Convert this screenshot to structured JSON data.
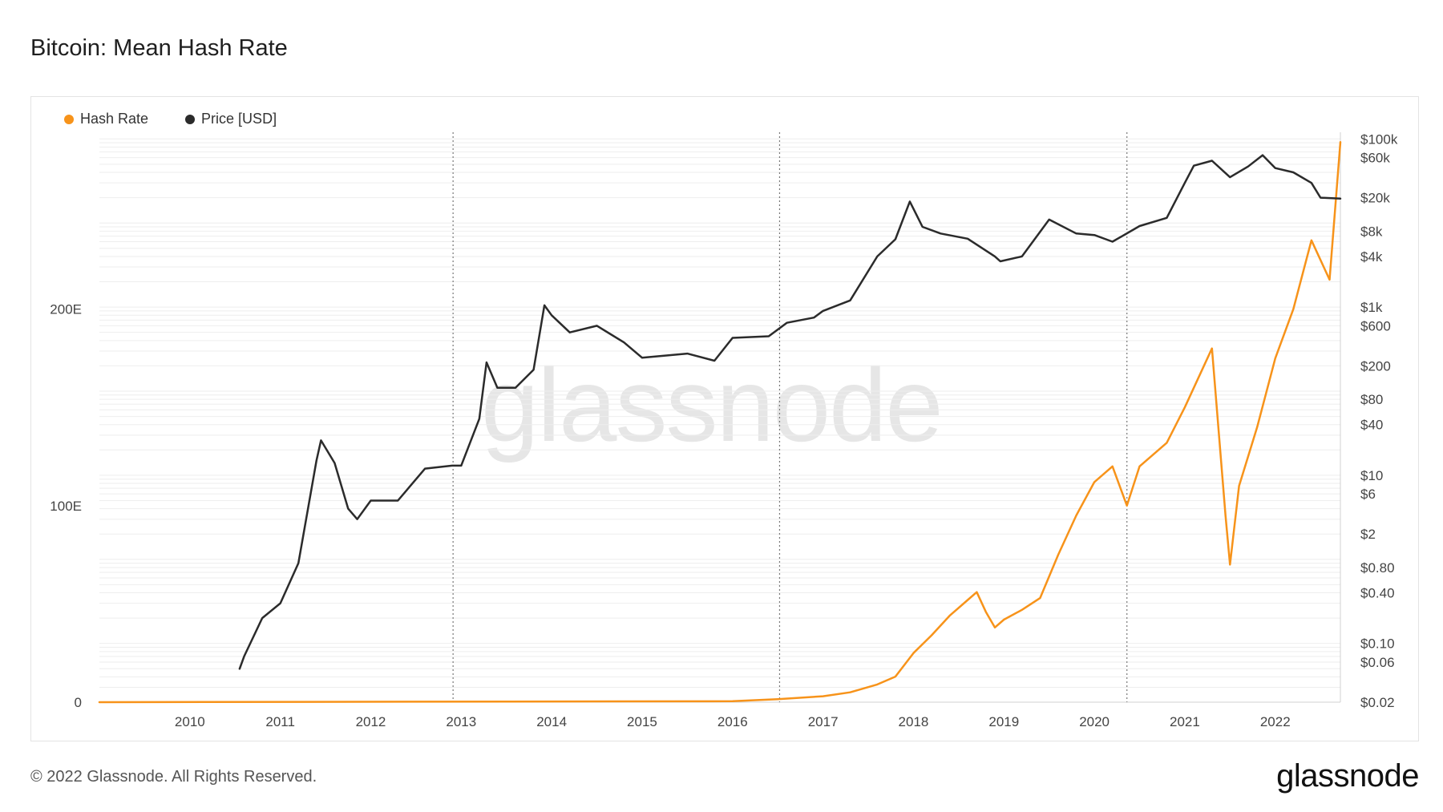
{
  "header": {
    "title": "Bitcoin: Mean Hash Rate"
  },
  "legend": [
    {
      "label": "Hash Rate",
      "color": "#f7931a"
    },
    {
      "label": "Price [USD]",
      "color": "#2b2b2b"
    }
  ],
  "watermark": "glassnode",
  "footer": {
    "copyright": "© 2022 Glassnode. All Rights Reserved.",
    "brand": "glassnode"
  },
  "chart_data": {
    "type": "line",
    "title": "Bitcoin: Mean Hash Rate",
    "x_range": [
      2009.0,
      2022.72
    ],
    "x_ticks": [
      "2010",
      "2011",
      "2012",
      "2013",
      "2014",
      "2015",
      "2016",
      "2017",
      "2018",
      "2019",
      "2020",
      "2021",
      "2022"
    ],
    "halvings": [
      2012.91,
      2016.52,
      2020.36
    ],
    "left_axis": {
      "ticks": [
        "0",
        "100E",
        "200E"
      ],
      "tick_values": [
        0,
        100,
        200
      ],
      "range": [
        0,
        290
      ],
      "unit": "EH/s"
    },
    "right_axis": {
      "scale": "log",
      "range": [
        0.02,
        120000
      ],
      "ticks": [
        "$0.02",
        "$0.06",
        "$0.10",
        "$0.40",
        "$0.80",
        "$2",
        "$6",
        "$10",
        "$40",
        "$80",
        "$200",
        "$600",
        "$1k",
        "$4k",
        "$8k",
        "$20k",
        "$60k",
        "$100k"
      ],
      "tick_values": [
        0.02,
        0.06,
        0.1,
        0.4,
        0.8,
        2,
        6,
        10,
        40,
        80,
        200,
        600,
        1000,
        4000,
        8000,
        20000,
        60000,
        100000
      ]
    },
    "series": [
      {
        "name": "Hash Rate",
        "axis": "left",
        "color": "#f7931a",
        "x": [
          2009.0,
          2016.0,
          2016.5,
          2017.0,
          2017.3,
          2017.6,
          2017.8,
          2018.0,
          2018.2,
          2018.4,
          2018.6,
          2018.7,
          2018.8,
          2018.9,
          2019.0,
          2019.2,
          2019.4,
          2019.6,
          2019.8,
          2020.0,
          2020.2,
          2020.36,
          2020.5,
          2020.8,
          2021.0,
          2021.2,
          2021.3,
          2021.45,
          2021.5,
          2021.6,
          2021.8,
          2022.0,
          2022.2,
          2022.4,
          2022.6,
          2022.72
        ],
        "y": [
          0,
          0.5,
          1.5,
          3,
          5,
          9,
          13,
          25,
          34,
          44,
          52,
          56,
          46,
          38,
          42,
          47,
          53,
          75,
          95,
          112,
          120,
          100,
          120,
          132,
          150,
          170,
          180,
          95,
          70,
          110,
          140,
          175,
          200,
          235,
          215,
          285
        ]
      },
      {
        "name": "Price [USD]",
        "axis": "right",
        "color": "#2b2b2b",
        "x": [
          2010.55,
          2010.6,
          2010.8,
          2011.0,
          2011.2,
          2011.4,
          2011.45,
          2011.6,
          2011.75,
          2011.85,
          2012.0,
          2012.3,
          2012.6,
          2012.9,
          2013.0,
          2013.2,
          2013.28,
          2013.4,
          2013.6,
          2013.8,
          2013.92,
          2014.0,
          2014.2,
          2014.5,
          2014.8,
          2015.0,
          2015.5,
          2015.8,
          2016.0,
          2016.4,
          2016.6,
          2016.9,
          2017.0,
          2017.3,
          2017.6,
          2017.8,
          2017.96,
          2018.1,
          2018.3,
          2018.6,
          2018.9,
          2018.96,
          2019.2,
          2019.5,
          2019.8,
          2020.0,
          2020.2,
          2020.5,
          2020.8,
          2021.0,
          2021.1,
          2021.3,
          2021.5,
          2021.7,
          2021.86,
          2022.0,
          2022.2,
          2022.4,
          2022.5,
          2022.72
        ],
        "y": [
          0.05,
          0.07,
          0.2,
          0.3,
          0.9,
          15,
          26,
          14,
          4,
          3,
          5,
          5,
          12,
          13,
          13,
          47,
          220,
          110,
          110,
          180,
          1050,
          800,
          500,
          600,
          380,
          250,
          280,
          230,
          430,
          450,
          650,
          750,
          900,
          1200,
          4000,
          6400,
          18000,
          9000,
          7500,
          6500,
          4000,
          3500,
          4000,
          11000,
          7500,
          7200,
          6000,
          9200,
          11500,
          30000,
          48000,
          55000,
          35000,
          47000,
          64000,
          45000,
          40000,
          30000,
          20000,
          19500
        ]
      }
    ]
  }
}
